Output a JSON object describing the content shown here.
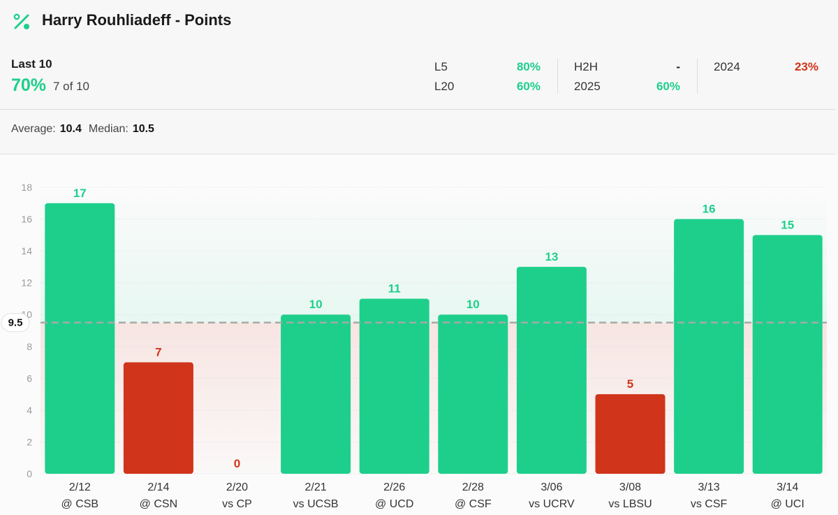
{
  "header": {
    "title": "Harry Rouhliadeff - Points",
    "icon": "percent-icon"
  },
  "last10": {
    "label": "Last 10",
    "pct": "70%",
    "fraction": "7 of 10"
  },
  "stats": {
    "l5": {
      "label": "L5",
      "value": "80%"
    },
    "l20": {
      "label": "L20",
      "value": "60%"
    },
    "h2h": {
      "label": "H2H",
      "value": "-"
    },
    "y2025": {
      "label": "2025",
      "value": "60%"
    },
    "y2024": {
      "label": "2024",
      "value": "23%"
    }
  },
  "summary": {
    "average_label": "Average:",
    "average": "10.4",
    "median_label": "Median:",
    "median": "10.5"
  },
  "colors": {
    "over": "#1ecf8c",
    "under": "#d0341a",
    "line": "#a8a8a8"
  },
  "chart_data": {
    "type": "bar",
    "categories": [
      [
        "2/12",
        "@ CSB"
      ],
      [
        "2/14",
        "@ CSN"
      ],
      [
        "2/20",
        "vs CP"
      ],
      [
        "2/21",
        "vs UCSB"
      ],
      [
        "2/26",
        "@ UCD"
      ],
      [
        "2/28",
        "@ CSF"
      ],
      [
        "3/06",
        "vs UCRV"
      ],
      [
        "3/08",
        "vs LBSU"
      ],
      [
        "3/13",
        "vs CSF"
      ],
      [
        "3/14",
        "@ UCI"
      ]
    ],
    "values": [
      17,
      7,
      0,
      10,
      11,
      10,
      13,
      5,
      16,
      15
    ],
    "line": 9.5,
    "line_label": "9.5",
    "ylim": [
      0,
      18
    ],
    "yticks": [
      0,
      2,
      4,
      6,
      8,
      10,
      12,
      14,
      16,
      18
    ],
    "title": "",
    "xlabel": "",
    "ylabel": ""
  }
}
